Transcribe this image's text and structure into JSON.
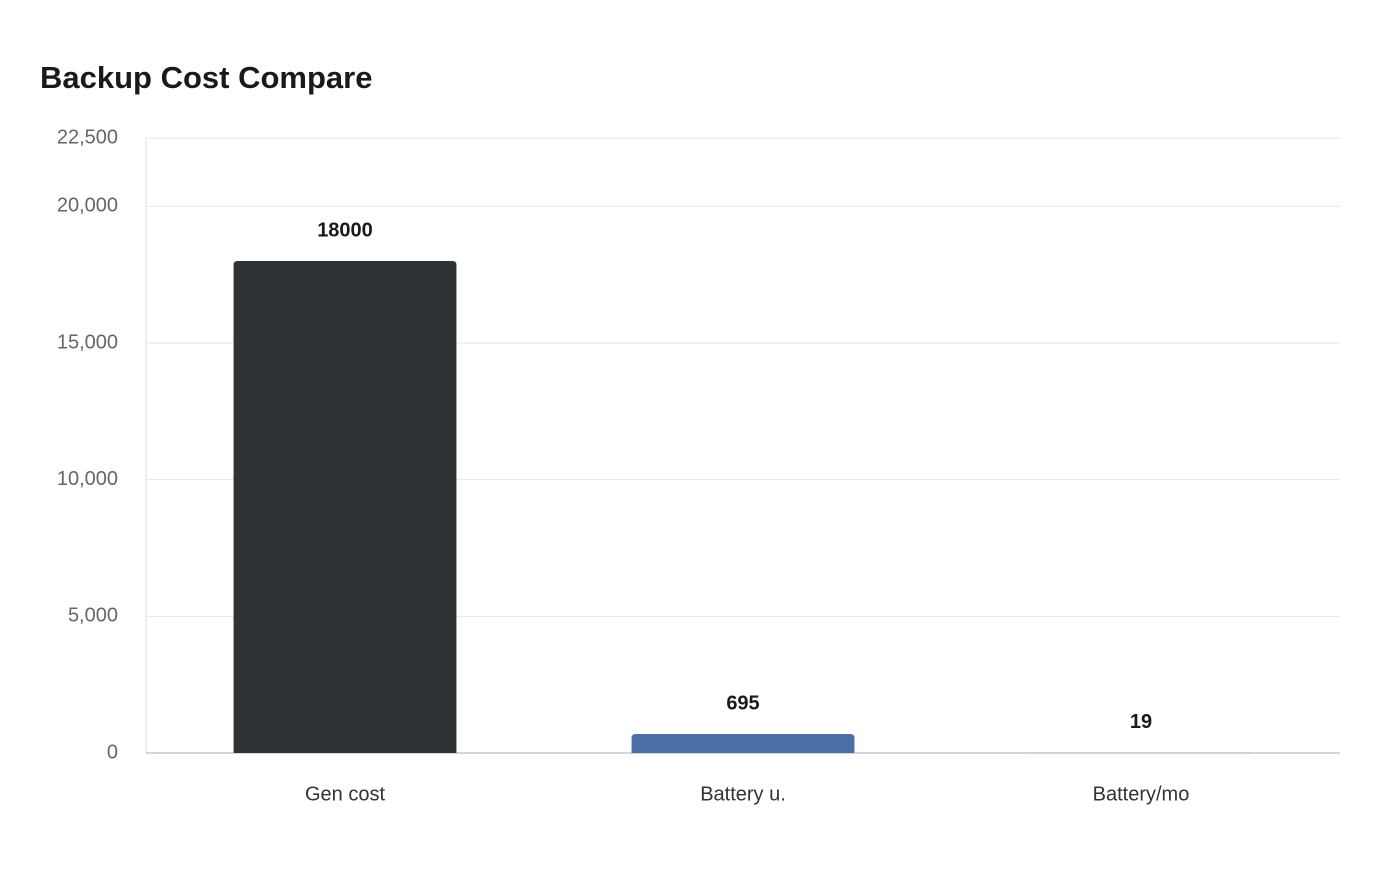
{
  "chart_data": {
    "type": "bar",
    "title": "Backup Cost Compare",
    "categories": [
      "Gen cost",
      "Battery u.",
      "Battery/mo"
    ],
    "values": [
      18000,
      695,
      19
    ],
    "colors": [
      "#2e3436",
      "#4a6fa5",
      "#b8b8b8"
    ],
    "ylim": [
      0,
      22500
    ],
    "yticks": [
      0,
      {
        "value": 5000,
        "label": "5,000"
      },
      {
        "value": 10000,
        "label": "10,000"
      },
      {
        "value": 15000,
        "label": "15,000"
      },
      {
        "value": 20000,
        "label": "20,000"
      },
      {
        "value": 22500,
        "label": "22,500"
      }
    ],
    "grid": true
  }
}
